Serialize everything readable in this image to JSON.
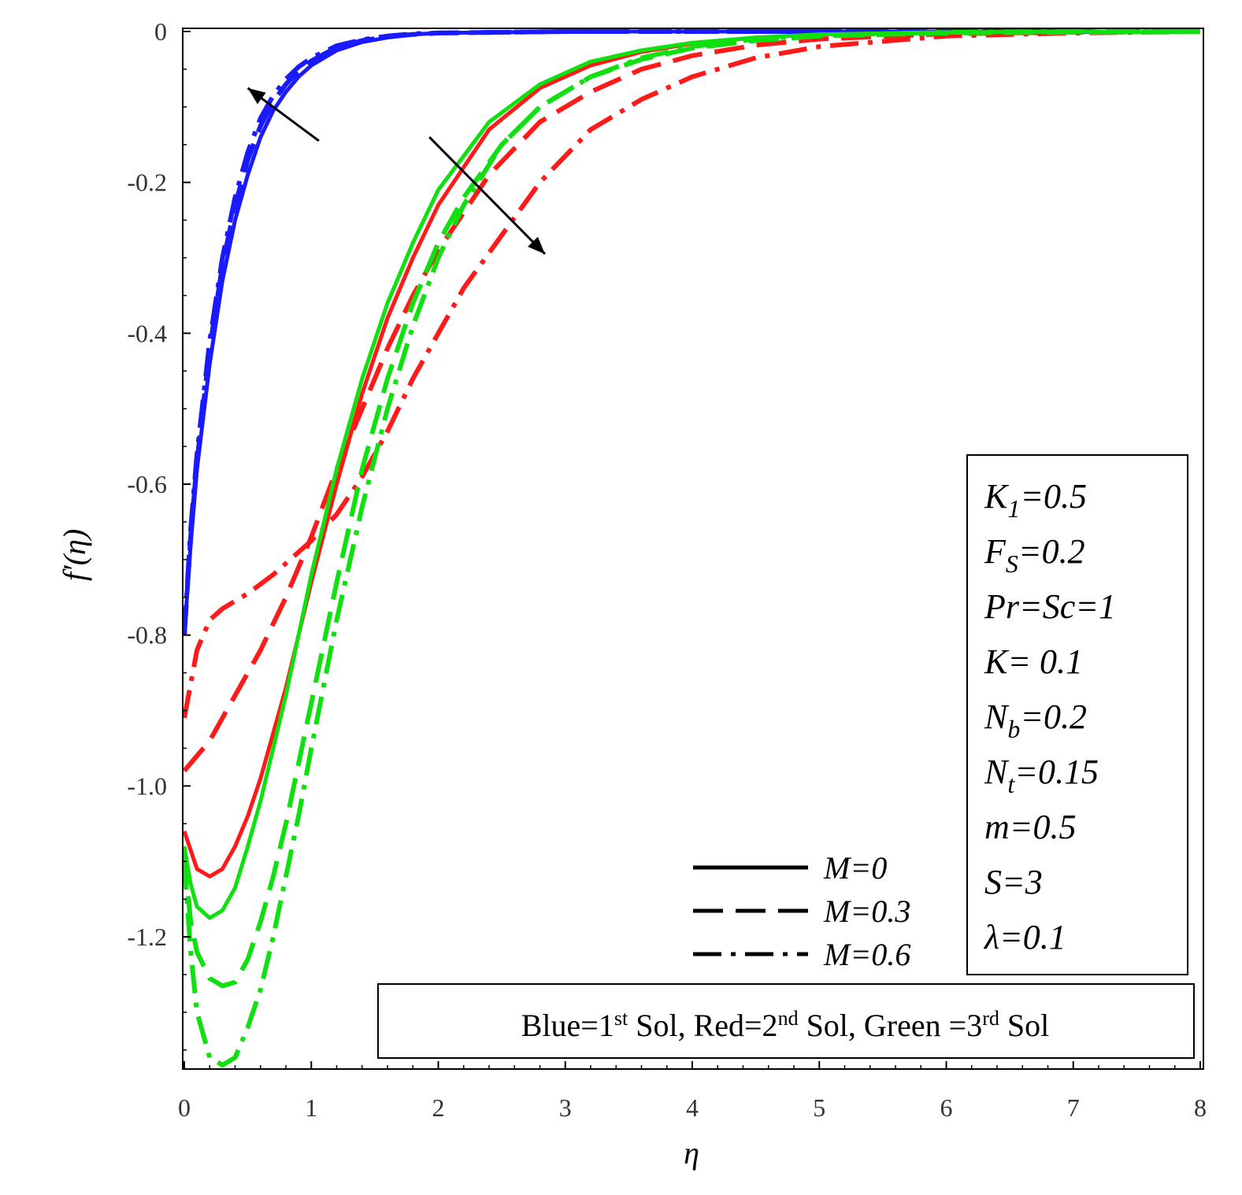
{
  "chart_data": {
    "type": "line",
    "xlabel": "η",
    "ylabel": "f′(η)",
    "xlim": [
      0,
      8
    ],
    "ylim": [
      -1.37,
      0
    ],
    "x_ticks": [
      0,
      1,
      2,
      3,
      4,
      5,
      6,
      7,
      8
    ],
    "y_ticks": [
      0,
      -0.2,
      -0.4,
      -0.6,
      -0.8,
      -1.0,
      -1.2
    ],
    "y_tick_labels": [
      "0",
      "-0.2",
      "-0.4",
      "-0.6",
      "-0.8",
      "-1.0",
      "-1.2"
    ],
    "grid": false,
    "colors": {
      "blue": "#1a1aff",
      "red": "#ff1a1a",
      "green": "#10e010"
    },
    "series": [
      {
        "color": "blue",
        "style": "solid",
        "x": [
          0,
          0.05,
          0.1,
          0.2,
          0.3,
          0.4,
          0.5,
          0.6,
          0.7,
          0.8,
          0.9,
          1.0,
          1.2,
          1.4,
          1.6,
          1.8,
          2.0,
          2.5,
          3,
          8
        ],
        "y": [
          -0.8,
          -0.68,
          -0.58,
          -0.44,
          -0.33,
          -0.25,
          -0.19,
          -0.14,
          -0.105,
          -0.08,
          -0.06,
          -0.045,
          -0.025,
          -0.014,
          -0.008,
          -0.004,
          -0.002,
          -0.001,
          0,
          0
        ]
      },
      {
        "color": "blue",
        "style": "dashed",
        "x": [
          0,
          0.05,
          0.1,
          0.2,
          0.3,
          0.4,
          0.5,
          0.6,
          0.7,
          0.8,
          0.9,
          1.0,
          1.2,
          1.4,
          1.6,
          1.8,
          2.0,
          2.5,
          3,
          8
        ],
        "y": [
          -0.8,
          -0.67,
          -0.57,
          -0.42,
          -0.31,
          -0.23,
          -0.17,
          -0.125,
          -0.093,
          -0.07,
          -0.052,
          -0.039,
          -0.021,
          -0.012,
          -0.007,
          -0.004,
          -0.002,
          -0.001,
          0,
          0
        ]
      },
      {
        "color": "blue",
        "style": "dashdot",
        "x": [
          0,
          0.05,
          0.1,
          0.2,
          0.3,
          0.4,
          0.5,
          0.6,
          0.7,
          0.8,
          0.9,
          1.0,
          1.2,
          1.4,
          1.6,
          1.8,
          2.0,
          2.5,
          3,
          8
        ],
        "y": [
          -0.8,
          -0.66,
          -0.56,
          -0.41,
          -0.3,
          -0.22,
          -0.16,
          -0.115,
          -0.085,
          -0.063,
          -0.047,
          -0.035,
          -0.019,
          -0.011,
          -0.006,
          -0.003,
          -0.002,
          -0.001,
          0,
          0
        ]
      },
      {
        "color": "red",
        "style": "solid",
        "x": [
          0,
          0.1,
          0.2,
          0.3,
          0.4,
          0.5,
          0.6,
          0.8,
          1.0,
          1.2,
          1.4,
          1.6,
          1.8,
          2.0,
          2.4,
          2.8,
          3.2,
          3.6,
          4.0,
          4.5,
          5.0,
          6.0,
          7.0,
          8.0
        ],
        "y": [
          -1.06,
          -1.11,
          -1.12,
          -1.11,
          -1.08,
          -1.04,
          -0.99,
          -0.87,
          -0.73,
          -0.6,
          -0.48,
          -0.38,
          -0.3,
          -0.23,
          -0.13,
          -0.075,
          -0.045,
          -0.027,
          -0.016,
          -0.008,
          -0.004,
          -0.001,
          0,
          0
        ]
      },
      {
        "color": "red",
        "style": "dashed",
        "x": [
          0,
          0.2,
          0.4,
          0.6,
          0.8,
          1.0,
          1.2,
          1.4,
          1.6,
          1.8,
          2.0,
          2.2,
          2.4,
          2.8,
          3.2,
          3.6,
          4.0,
          4.5,
          5.0,
          6.0,
          7.0,
          8.0
        ],
        "y": [
          -0.98,
          -0.94,
          -0.88,
          -0.82,
          -0.75,
          -0.67,
          -0.58,
          -0.5,
          -0.42,
          -0.35,
          -0.29,
          -0.24,
          -0.19,
          -0.12,
          -0.08,
          -0.05,
          -0.032,
          -0.018,
          -0.01,
          -0.003,
          -0.001,
          0
        ]
      },
      {
        "color": "red",
        "style": "dashdot",
        "x": [
          0,
          0.1,
          0.2,
          0.3,
          0.5,
          0.7,
          0.9,
          1.0,
          1.2,
          1.4,
          1.6,
          1.8,
          2.0,
          2.2,
          2.5,
          2.8,
          3.2,
          3.6,
          4.0,
          4.5,
          5.0,
          6.0,
          7.0,
          8.0
        ],
        "y": [
          -0.91,
          -0.82,
          -0.78,
          -0.765,
          -0.745,
          -0.72,
          -0.69,
          -0.675,
          -0.64,
          -0.59,
          -0.53,
          -0.46,
          -0.4,
          -0.34,
          -0.27,
          -0.2,
          -0.13,
          -0.09,
          -0.06,
          -0.035,
          -0.02,
          -0.006,
          -0.002,
          0
        ]
      },
      {
        "color": "green",
        "style": "solid",
        "x": [
          0,
          0.05,
          0.1,
          0.2,
          0.3,
          0.4,
          0.5,
          0.6,
          0.8,
          1.0,
          1.2,
          1.4,
          1.6,
          1.8,
          2.0,
          2.4,
          2.8,
          3.2,
          3.6,
          4.0,
          4.5,
          5.0,
          6.0,
          7.0,
          8.0
        ],
        "y": [
          -1.08,
          -1.13,
          -1.16,
          -1.175,
          -1.165,
          -1.135,
          -1.08,
          -1.02,
          -0.88,
          -0.72,
          -0.58,
          -0.46,
          -0.36,
          -0.28,
          -0.21,
          -0.12,
          -0.07,
          -0.04,
          -0.025,
          -0.015,
          -0.008,
          -0.004,
          -0.001,
          0,
          0
        ]
      },
      {
        "color": "green",
        "style": "dashed",
        "x": [
          0,
          0.05,
          0.1,
          0.2,
          0.3,
          0.4,
          0.5,
          0.6,
          0.7,
          0.8,
          1.0,
          1.2,
          1.4,
          1.6,
          1.8,
          2.0,
          2.2,
          2.5,
          2.8,
          3.2,
          3.6,
          4.0,
          4.5,
          5.0,
          6.0,
          7.0,
          8.0
        ],
        "y": [
          -1.09,
          -1.18,
          -1.22,
          -1.255,
          -1.265,
          -1.26,
          -1.23,
          -1.18,
          -1.12,
          -1.05,
          -0.89,
          -0.73,
          -0.58,
          -0.46,
          -0.36,
          -0.28,
          -0.22,
          -0.15,
          -0.1,
          -0.06,
          -0.037,
          -0.022,
          -0.012,
          -0.006,
          -0.002,
          -0.001,
          0
        ]
      },
      {
        "color": "green",
        "style": "dashdot",
        "x": [
          0,
          0.05,
          0.1,
          0.2,
          0.3,
          0.4,
          0.5,
          0.6,
          0.7,
          0.8,
          0.9,
          1.0,
          1.2,
          1.4,
          1.6,
          1.8,
          2.0,
          2.2,
          2.5,
          2.8,
          3.2,
          3.6,
          4.0,
          4.5,
          5.0,
          6.0,
          7.0,
          8.0
        ],
        "y": [
          -1.1,
          -1.22,
          -1.3,
          -1.36,
          -1.37,
          -1.36,
          -1.32,
          -1.27,
          -1.2,
          -1.12,
          -1.04,
          -0.95,
          -0.78,
          -0.63,
          -0.5,
          -0.39,
          -0.3,
          -0.23,
          -0.15,
          -0.1,
          -0.06,
          -0.035,
          -0.02,
          -0.01,
          -0.005,
          -0.001,
          0,
          0
        ]
      }
    ],
    "legend": [
      {
        "label": "M=0",
        "style": "solid"
      },
      {
        "label": "M=0.3",
        "style": "dashed"
      },
      {
        "label": "M=0.6",
        "style": "dashdot"
      }
    ],
    "parameters": [
      "K",
      "F",
      "Pr=Sc=1",
      "K= 0.1",
      "N",
      "N",
      "m=0.5",
      "S=3",
      "λ=0.1"
    ],
    "parameter_rows": [
      {
        "main": "K",
        "sub": "1",
        "rest": "=0.5"
      },
      {
        "main": "F",
        "sub": "S",
        "rest": "=0.2"
      },
      {
        "main": "Pr=Sc=1",
        "sub": "",
        "rest": ""
      },
      {
        "main": "K= 0.1",
        "sub": "",
        "rest": ""
      },
      {
        "main": "N",
        "sub": "b",
        "rest": "=0.2"
      },
      {
        "main": "N",
        "sub": "t",
        "rest": "=0.15"
      },
      {
        "main": "m=0.5",
        "sub": "",
        "rest": ""
      },
      {
        "main": "S=3",
        "sub": "",
        "rest": ""
      },
      {
        "main": "λ=0.1",
        "sub": "",
        "rest": ""
      }
    ],
    "note": {
      "parts": [
        {
          "text": "Blue=1"
        },
        {
          "sup": "st"
        },
        {
          "text": " Sol, Red=2"
        },
        {
          "sup": "nd"
        },
        {
          "text": " Sol, Green =3"
        },
        {
          "sup": "rd"
        },
        {
          "text": " Sol"
        }
      ]
    },
    "annotations": [
      {
        "type": "arrow",
        "from": [
          1.06,
          -0.145
        ],
        "to": [
          0.5,
          -0.075
        ]
      },
      {
        "type": "arrow",
        "from": [
          1.93,
          -0.14
        ],
        "to": [
          2.84,
          -0.295
        ]
      }
    ]
  }
}
